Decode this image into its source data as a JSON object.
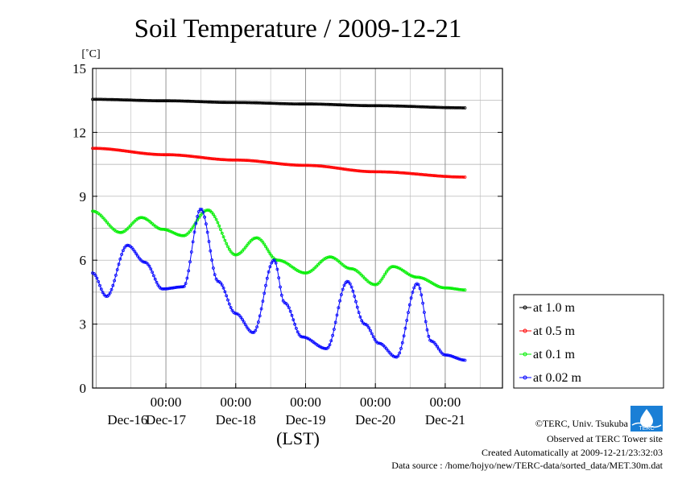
{
  "chart_data": {
    "type": "line",
    "title": "Soil Temperature / 2009-12-21",
    "ylabel": "[˚C]",
    "xlabel": "(LST)",
    "ylim": [
      0,
      15
    ],
    "yticks": [
      0,
      3,
      6,
      9,
      12,
      15
    ],
    "xlim": [
      -1.05,
      4.82
    ],
    "xticks": [
      {
        "x": 0,
        "time": "00:00",
        "date": "Dec-17"
      },
      {
        "x": 1,
        "time": "00:00",
        "date": "Dec-18"
      },
      {
        "x": 2,
        "time": "00:00",
        "date": "Dec-19"
      },
      {
        "x": 3,
        "time": "00:00",
        "date": "Dec-20"
      },
      {
        "x": 4,
        "time": "00:00",
        "date": "Dec-21"
      }
    ],
    "first_date_label": "Dec-16",
    "grid": true,
    "legend_position": "right",
    "series": [
      {
        "name": "at 1.0 m",
        "color": "#000000",
        "x": [
          -1.05,
          0,
          1,
          2,
          3,
          4.3
        ],
        "y": [
          13.55,
          13.48,
          13.4,
          13.33,
          13.25,
          13.15
        ]
      },
      {
        "name": "at 0.5 m",
        "color": "#ff0000",
        "x": [
          -1.05,
          0,
          1,
          2,
          3,
          4.3
        ],
        "y": [
          11.25,
          10.95,
          10.7,
          10.45,
          10.15,
          9.9
        ]
      },
      {
        "name": "at 0.1 m",
        "color": "#00ee00",
        "x": [
          -1.05,
          -0.65,
          -0.35,
          -0.05,
          0.25,
          0.6,
          1.0,
          1.3,
          1.6,
          2.0,
          2.35,
          2.65,
          3.0,
          3.25,
          3.6,
          4.0,
          4.3
        ],
        "y": [
          8.3,
          7.3,
          8.0,
          7.45,
          7.15,
          8.35,
          6.25,
          7.05,
          6.0,
          5.4,
          6.15,
          5.6,
          4.85,
          5.7,
          5.2,
          4.7,
          4.6
        ]
      },
      {
        "name": "at 0.02 m",
        "color": "#0000ff",
        "x": [
          -1.05,
          -0.85,
          -0.55,
          -0.3,
          -0.05,
          0.25,
          0.5,
          0.75,
          1.0,
          1.25,
          1.55,
          1.7,
          1.95,
          2.3,
          2.6,
          2.85,
          3.05,
          3.3,
          3.6,
          3.8,
          4.0,
          4.3
        ],
        "y": [
          5.4,
          4.3,
          6.7,
          5.9,
          4.65,
          4.75,
          8.4,
          5.0,
          3.5,
          2.6,
          6.0,
          4.0,
          2.4,
          1.85,
          5.0,
          3.0,
          2.1,
          1.45,
          4.9,
          2.2,
          1.55,
          1.3
        ]
      }
    ]
  },
  "footer": {
    "copyright": "©TERC, Univ. Tsukuba",
    "site": "Observed at TERC Tower site",
    "created": "Created Automatically at 2009-12-21/23:32:03",
    "source": "Data source : /home/hojyo/new/TERC-data/sorted_data/MET.30m.dat",
    "logo_text": "TERC"
  }
}
